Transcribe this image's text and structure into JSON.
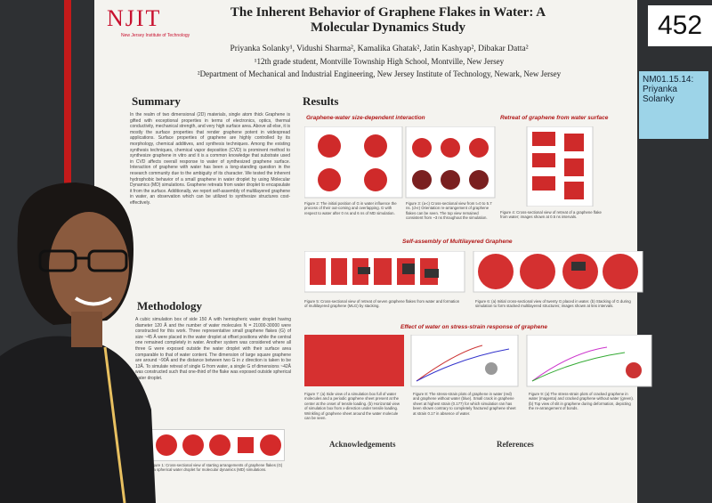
{
  "board": {
    "number": "452",
    "tag": "NM01.15.14: Priyanka Solanky"
  },
  "header": {
    "logo": "NJIT",
    "logo_sub": "New Jersey Institute of Technology",
    "title": "The Inherent Behavior of Graphene Flakes in Water: A Molecular Dynamics Study",
    "authors": "Priyanka Solanky¹, Vidushi Sharma², Kamalika Ghatak², Jatin Kashyap², Dibakar Datta²",
    "affiliations": [
      "¹12th grade student, Montville Township High School, Montville, New Jersey",
      "²Department of Mechanical and Industrial Engineering, New Jersey Institute of Technology, Newark, New Jersey"
    ]
  },
  "summary": {
    "heading": "Summary",
    "text": "In the realm of two dimensional (2D) materials, single atom thick Graphene is gifted with exceptional properties in terms of electronics, optics, thermal conductivity, mechanical strength, and very high surface area. Above all else, it is mostly the surface properties that render graphene potent in widespread applications. Surface properties of graphene are highly controlled by its morphology, chemical additives, and synthesis techniques. Among the existing synthesis techniques, chemical vapor deposition (CVD) is prominent method to synthesize graphene in vitro and it is a common knowledge that substrate used in CVD affects overall response to water of synthesized graphene surface. Interaction of graphene with water has been a long-standing question in the research community due to the ambiguity of its character. We tested the inherent hydrophobic behavior of a small graphene in water droplet by using Molecular Dynamics (MD) simulations. Graphene retreats from water droplet to encapsulate it from the surface. Additionally, we report self-assembly of multilayered graphene in water, an observation which can be utilized to synthesize structures cost-effectively."
  },
  "methodology": {
    "heading": "Methodology",
    "text": "A cubic simulation box of side 150 Å with hemispheric water droplet having diameter 120 Å and the number of water molecules N = 21000-30000 were constructed for this work. Three representative small graphene flakes (G) of size ~45 Å were placed in the water droplet at offset positions while the central one remained completely in water. Another system was considered where all three G were exposed outside the water droplet with their surface area comparable to that of water content. The dimension of large square graphene are around ~90Å and the distance between two G in z direction is taken to be 13Å. To simulate retreat of single G from water, a single G of dimensions ~42Å was constructed such that one-third of the flake was exposed outside spherical water droplet.",
    "caption": "Figure 1: Cross-sectional view of starting arrangements of graphene flakes (G) in a spherical water droplet for molecular dynamics (MD) simulations."
  },
  "results": {
    "heading": "Results",
    "sub1": "Graphene-water size-dependent interaction",
    "sub2": "Retreat of graphene from water surface",
    "sub3": "Self-assembly of Multilayered Graphene",
    "sub4": "Effect of water on stress-strain response of graphene",
    "fig2": "Figure 2: The initial position of G in water influence the process of their out-coming and overlapping. G with respect to water after 0 ns and 6 ns of MD simulation.",
    "fig3": "Figure 3: (a-c) Cross-sectional view from t=0 to 5.7 ns. (d-e) Orientation re-arrangement of graphene flakes can be seen. The top view remained consistent from ~3 ns throughout the simulation.",
    "fig4": "Figure 4: Cross-sectional view of retreat of a graphene flake from water; images shown at 0.5 ns intervals.",
    "fig5": "Figure 5: Cross-sectional view of retreat of seven graphene flakes from water and formation of multilayered graphene (MLG) by stacking.",
    "fig6": "Figure 6: (a) Initial cross-sectional view of twenty G placed in water. (b) Stacking of G during simulation to form stacked multilayered structures; images shown at 5ns intervals.",
    "fig7": "Figure 7: (a) Side view of a simulation box full of water molecules and a periodic graphene sheet present at the center at the onset of tensile loading. (b) Horizontal view of simulation box from x-direction under tensile loading. Wrinkling of graphene sheet around the water molecule can be seen.",
    "fig8": "Figure 8: The stress-strain plots of graphene in water (red) and graphene without water (blue). Small crack in graphene sheet at highest strain (0.177) for which simulation ran has been shown contrary to completely fractured graphene sheet at strain 0.17 in absence of water.",
    "fig9": "Figure 9: (a) The stress-strain plots of cracked graphene in water (magenta) and cracked graphene without water (green). (b) Top view of slit in graphene during deformation, depicting the re-arrangement of bonds."
  },
  "footer": {
    "acknowledgements": "Acknowledgements",
    "references": "References"
  }
}
